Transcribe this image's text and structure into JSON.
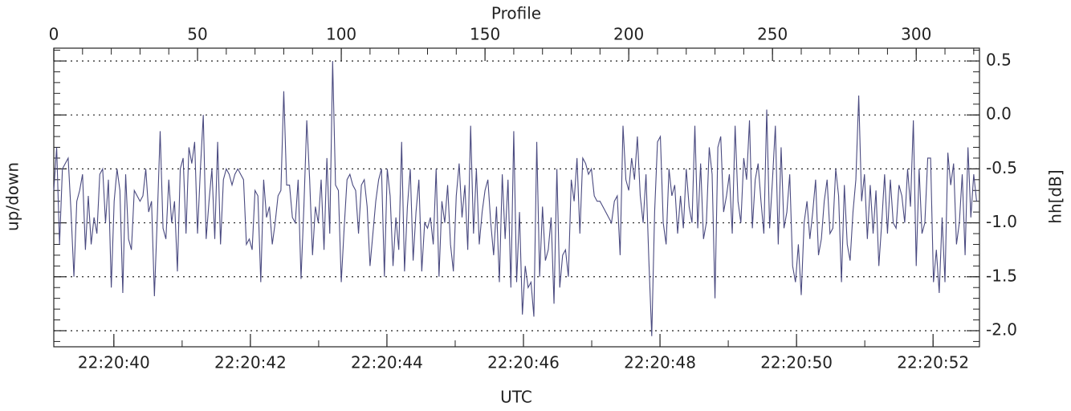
{
  "chart_data": {
    "type": "line",
    "xlabel": "Profile",
    "x2label": "UTC",
    "ylabel": "up/down",
    "y2label": "hh[dB]",
    "xlim": [
      0,
      322
    ],
    "xticks": [
      0,
      50,
      100,
      150,
      200,
      250,
      300
    ],
    "x2lim": [
      39.12,
      52.68
    ],
    "x2ticks": [
      {
        "value": 40,
        "label": "22:20:40"
      },
      {
        "value": 42,
        "label": "22:20:42"
      },
      {
        "value": 44,
        "label": "22:20:44"
      },
      {
        "value": 46,
        "label": "22:20:46"
      },
      {
        "value": 48,
        "label": "22:20:48"
      },
      {
        "value": 50,
        "label": "22:20:50"
      },
      {
        "value": 52,
        "label": "22:20:52"
      }
    ],
    "ylim": [
      -2.149,
      0.619
    ],
    "yticks": [
      {
        "value": -2.0,
        "label": "-2.0"
      },
      {
        "value": -1.5,
        "label": "-1.5"
      },
      {
        "value": -1.0,
        "label": "-1.0"
      },
      {
        "value": -0.5,
        "label": "-0.5"
      },
      {
        "value": 0.0,
        "label": "0.0"
      },
      {
        "value": 0.5,
        "label": "0.5"
      }
    ],
    "grid": true,
    "x": [
      0,
      1,
      2,
      3,
      4,
      5,
      6,
      7,
      8,
      9,
      10,
      11,
      12,
      13,
      14,
      15,
      16,
      17,
      18,
      19,
      20,
      21,
      22,
      23,
      24,
      25,
      26,
      27,
      28,
      29,
      30,
      31,
      32,
      33,
      34,
      35,
      36,
      37,
      38,
      39,
      40,
      41,
      42,
      43,
      44,
      45,
      46,
      47,
      48,
      49,
      50,
      51,
      52,
      53,
      54,
      55,
      56,
      57,
      58,
      59,
      60,
      61,
      62,
      63,
      64,
      65,
      66,
      67,
      68,
      69,
      70,
      71,
      72,
      73,
      74,
      75,
      76,
      77,
      78,
      79,
      80,
      81,
      82,
      83,
      84,
      85,
      86,
      87,
      88,
      89,
      90,
      91,
      92,
      93,
      94,
      95,
      96,
      97,
      98,
      99,
      100,
      101,
      102,
      103,
      104,
      105,
      106,
      107,
      108,
      109,
      110,
      111,
      112,
      113,
      114,
      115,
      116,
      117,
      118,
      119,
      120,
      121,
      122,
      123,
      124,
      125,
      126,
      127,
      128,
      129,
      130,
      131,
      132,
      133,
      134,
      135,
      136,
      137,
      138,
      139,
      140,
      141,
      142,
      143,
      144,
      145,
      146,
      147,
      148,
      149,
      150,
      151,
      152,
      153,
      154,
      155,
      156,
      157,
      158,
      159,
      160,
      161,
      162,
      163,
      164,
      165,
      166,
      167,
      168,
      169,
      170,
      171,
      172,
      173,
      174,
      175,
      176,
      177,
      178,
      179,
      180,
      181,
      182,
      183,
      184,
      185,
      186,
      187,
      188,
      189,
      190,
      191,
      192,
      193,
      194,
      195,
      196,
      197,
      198,
      199,
      200,
      201,
      202,
      203,
      204,
      205,
      206,
      207,
      208,
      209,
      210,
      211,
      212,
      213,
      214,
      215,
      216,
      217,
      218,
      219,
      220,
      221,
      222,
      223,
      224,
      225,
      226,
      227,
      228,
      229,
      230,
      231,
      232,
      233,
      234,
      235,
      236,
      237,
      238,
      239,
      240,
      241,
      242,
      243,
      244,
      245,
      246,
      247,
      248,
      249,
      250,
      251,
      252,
      253,
      254,
      255,
      256,
      257,
      258,
      259,
      260,
      261,
      262,
      263,
      264,
      265,
      266,
      267,
      268,
      269,
      270,
      271,
      272,
      273,
      274,
      275,
      276,
      277,
      278,
      279,
      280,
      281,
      282,
      283,
      284,
      285,
      286,
      287,
      288,
      289,
      290,
      291,
      292,
      293,
      294,
      295,
      296,
      297,
      298,
      299,
      300,
      301,
      302,
      303,
      304,
      305,
      306,
      307,
      308,
      309,
      310,
      311,
      312,
      313,
      314,
      315,
      316,
      317,
      318,
      319,
      320,
      321
    ],
    "series": [
      {
        "color": "#4a4a80",
        "values": [
          -0.7,
          -0.3,
          -1.2,
          -0.5,
          -0.45,
          -0.4,
          -0.9,
          -1.5,
          -0.8,
          -0.7,
          -0.55,
          -1.25,
          -0.75,
          -1.2,
          -0.95,
          -1.1,
          -0.55,
          -0.5,
          -1.0,
          -0.6,
          -1.6,
          -0.8,
          -0.5,
          -0.7,
          -1.65,
          -0.55,
          -1.15,
          -1.25,
          -0.7,
          -0.75,
          -0.8,
          -0.75,
          -0.5,
          -0.9,
          -0.8,
          -1.68,
          -0.95,
          -0.15,
          -1.05,
          -1.15,
          -0.6,
          -1.0,
          -0.8,
          -1.45,
          -0.5,
          -0.4,
          -1.1,
          -0.3,
          -0.45,
          -0.25,
          -1.1,
          -0.5,
          0.0,
          -1.15,
          -0.8,
          -0.5,
          -1.15,
          -0.25,
          -1.2,
          -0.6,
          -0.5,
          -0.55,
          -0.65,
          -0.55,
          -0.5,
          -0.55,
          -0.6,
          -1.2,
          -1.15,
          -1.25,
          -0.7,
          -0.75,
          -1.55,
          -0.6,
          -0.95,
          -0.85,
          -1.2,
          -1.0,
          -0.75,
          -0.7,
          0.22,
          -0.65,
          -0.65,
          -0.95,
          -1.0,
          -0.6,
          -1.52,
          -0.85,
          -0.05,
          -0.6,
          -1.3,
          -0.85,
          -1.0,
          -0.6,
          -1.25,
          -0.4,
          -1.1,
          0.5,
          -0.65,
          -0.7,
          -1.55,
          -1.05,
          -0.6,
          -0.55,
          -0.65,
          -0.7,
          -1.1,
          -0.65,
          -0.6,
          -0.85,
          -1.4,
          -1.1,
          -0.8,
          -0.6,
          -0.5,
          -1.5,
          -0.5,
          -0.75,
          -1.4,
          -0.95,
          -1.25,
          -0.25,
          -1.45,
          -0.85,
          -0.5,
          -1.35,
          -0.9,
          -0.6,
          -1.45,
          -1.0,
          -1.05,
          -0.95,
          -1.2,
          -0.5,
          -1.5,
          -0.8,
          -1.0,
          -0.65,
          -1.2,
          -1.45,
          -0.75,
          -0.45,
          -0.95,
          -0.65,
          -1.25,
          -0.1,
          -1.1,
          -0.5,
          -1.2,
          -0.9,
          -0.7,
          -0.6,
          -1.0,
          -1.3,
          -0.85,
          -1.55,
          -0.55,
          -1.15,
          -0.6,
          -1.6,
          -0.15,
          -1.55,
          -0.9,
          -1.85,
          -1.4,
          -1.6,
          -1.55,
          -1.87,
          -0.25,
          -1.5,
          -0.85,
          -1.35,
          -1.25,
          -0.95,
          -1.75,
          -0.5,
          -1.6,
          -1.3,
          -1.25,
          -1.5,
          -0.6,
          -0.8,
          -0.4,
          -1.1,
          -0.4,
          -0.45,
          -0.55,
          -0.5,
          -0.75,
          -0.8,
          -0.8,
          -0.85,
          -0.9,
          -0.95,
          -1.0,
          -0.8,
          -0.75,
          -1.3,
          -0.1,
          -0.6,
          -0.7,
          -0.4,
          -0.6,
          -0.2,
          -0.75,
          -1.0,
          -0.55,
          -1.35,
          -2.05,
          -0.9,
          -0.25,
          -0.2,
          -1.0,
          -1.2,
          -0.5,
          -0.75,
          -0.65,
          -1.1,
          -0.75,
          -1.05,
          -0.5,
          -0.85,
          -1.0,
          -0.1,
          -1.05,
          -0.45,
          -1.15,
          -1.0,
          -0.3,
          -0.55,
          -1.7,
          -0.3,
          -0.2,
          -0.9,
          -0.75,
          -0.55,
          -1.1,
          -0.1,
          -0.8,
          -1.0,
          -0.4,
          -0.6,
          -0.05,
          -1.05,
          -0.6,
          -0.45,
          -0.8,
          -1.1,
          0.05,
          -1.05,
          -0.6,
          -0.1,
          -1.2,
          -0.3,
          -1.05,
          -0.9,
          -0.55,
          -1.4,
          -1.55,
          -1.2,
          -1.67,
          -1.0,
          -0.8,
          -1.15,
          -0.9,
          -0.6,
          -1.3,
          -1.15,
          -0.8,
          -0.6,
          -1.1,
          -1.05,
          -0.5,
          -0.75,
          -1.55,
          -0.65,
          -1.2,
          -1.35,
          -0.9,
          -0.6,
          0.18,
          -0.8,
          -0.55,
          -1.15,
          -0.65,
          -1.1,
          -0.7,
          -1.4,
          -1.0,
          -0.55,
          -1.1,
          -0.6,
          -1.0,
          -1.05,
          -0.65,
          -0.75,
          -1.0,
          -0.5,
          -0.85,
          -0.05,
          -1.4,
          -0.5,
          -1.1,
          -1.0,
          -0.4,
          -0.4,
          -1.55,
          -1.25,
          -1.65,
          -0.95,
          -1.55,
          -0.35,
          -0.65,
          -0.45,
          -1.2,
          -1.0,
          -0.55,
          -1.3,
          -0.3,
          -0.95,
          -0.55,
          -0.8
        ]
      }
    ]
  }
}
